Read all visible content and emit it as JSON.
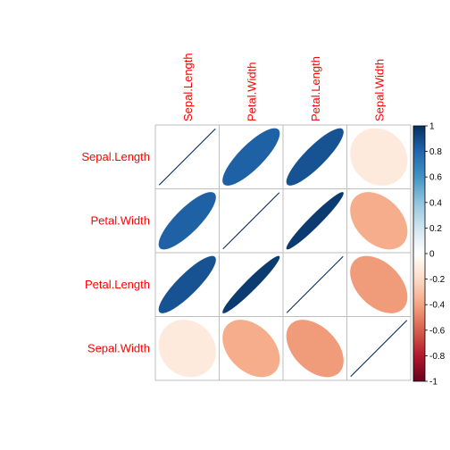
{
  "chart_data": {
    "type": "heatmap",
    "subtype": "correlation-ellipse",
    "title": "",
    "variables": [
      "Sepal.Length",
      "Petal.Width",
      "Petal.Length",
      "Sepal.Width"
    ],
    "matrix": [
      [
        1.0,
        0.82,
        0.87,
        -0.12
      ],
      [
        0.82,
        1.0,
        0.96,
        -0.37
      ],
      [
        0.87,
        0.96,
        1.0,
        -0.43
      ],
      [
        -0.12,
        -0.37,
        -0.43,
        1.0
      ]
    ],
    "colorbar": {
      "range": [
        -1,
        1
      ],
      "tick_labels": [
        "1",
        "0.8",
        "0.6",
        "0.4",
        "0.2",
        "0",
        "-0.2",
        "-0.4",
        "-0.6",
        "-0.8",
        "-1"
      ],
      "low_color": "#67001F",
      "mid_color": "#FFFFFF",
      "high_color": "#053061"
    },
    "label_color": "#FF0000",
    "grid_color": "#BEBEBE",
    "legend_placement": "right"
  }
}
